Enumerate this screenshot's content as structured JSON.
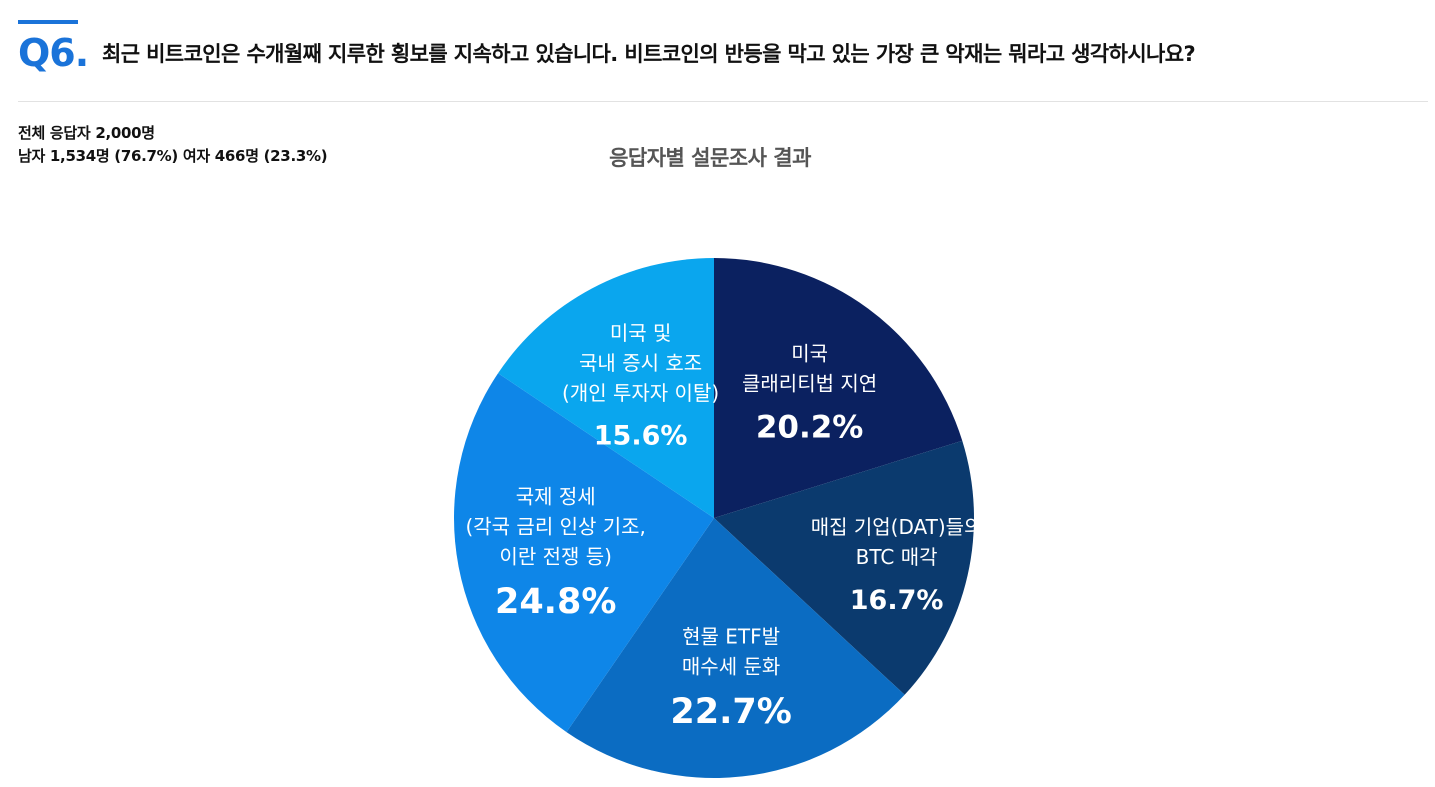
{
  "header": {
    "question_number": "Q6.",
    "question_text": "최근 비트코인은 수개월째 지루한 횡보를 지속하고 있습니다. 비트코인의 반등을 막고 있는 가장 큰 악재는 뭐라고 생각하시나요?"
  },
  "stats": {
    "total": "전체 응답자 2,000명",
    "gender": "남자 1,534명 (76.7%) 여자 466명 (23.3%)"
  },
  "colors": {
    "accent": "#1a73d9"
  },
  "chart_data": {
    "type": "pie",
    "title": "응답자별 설문조사 결과",
    "start_angle_deg": 0,
    "direction": "clockwise",
    "slices": [
      {
        "label_lines": [
          "미국",
          "클래리티법 지연"
        ],
        "value": 20.2,
        "value_label": "20.2%",
        "color": "#0b2160"
      },
      {
        "label_lines": [
          "매집 기업(DAT)들의",
          "BTC 매각"
        ],
        "value": 16.7,
        "value_label": "16.7%",
        "color": "#0b3a6e"
      },
      {
        "label_lines": [
          "현물 ETF발",
          "매수세 둔화"
        ],
        "value": 22.7,
        "value_label": "22.7%",
        "color": "#0b6cc2"
      },
      {
        "label_lines": [
          "국제 정세",
          "(각국 금리 인상 기조,",
          "이란 전쟁 등)"
        ],
        "value": 24.8,
        "value_label": "24.8%",
        "color": "#0e86e8"
      },
      {
        "label_lines": [
          "미국 및",
          "국내 증시 호조",
          "(개인 투자자 이탈)"
        ],
        "value": 15.6,
        "value_label": "15.6%",
        "color": "#0aa6ee"
      }
    ]
  }
}
